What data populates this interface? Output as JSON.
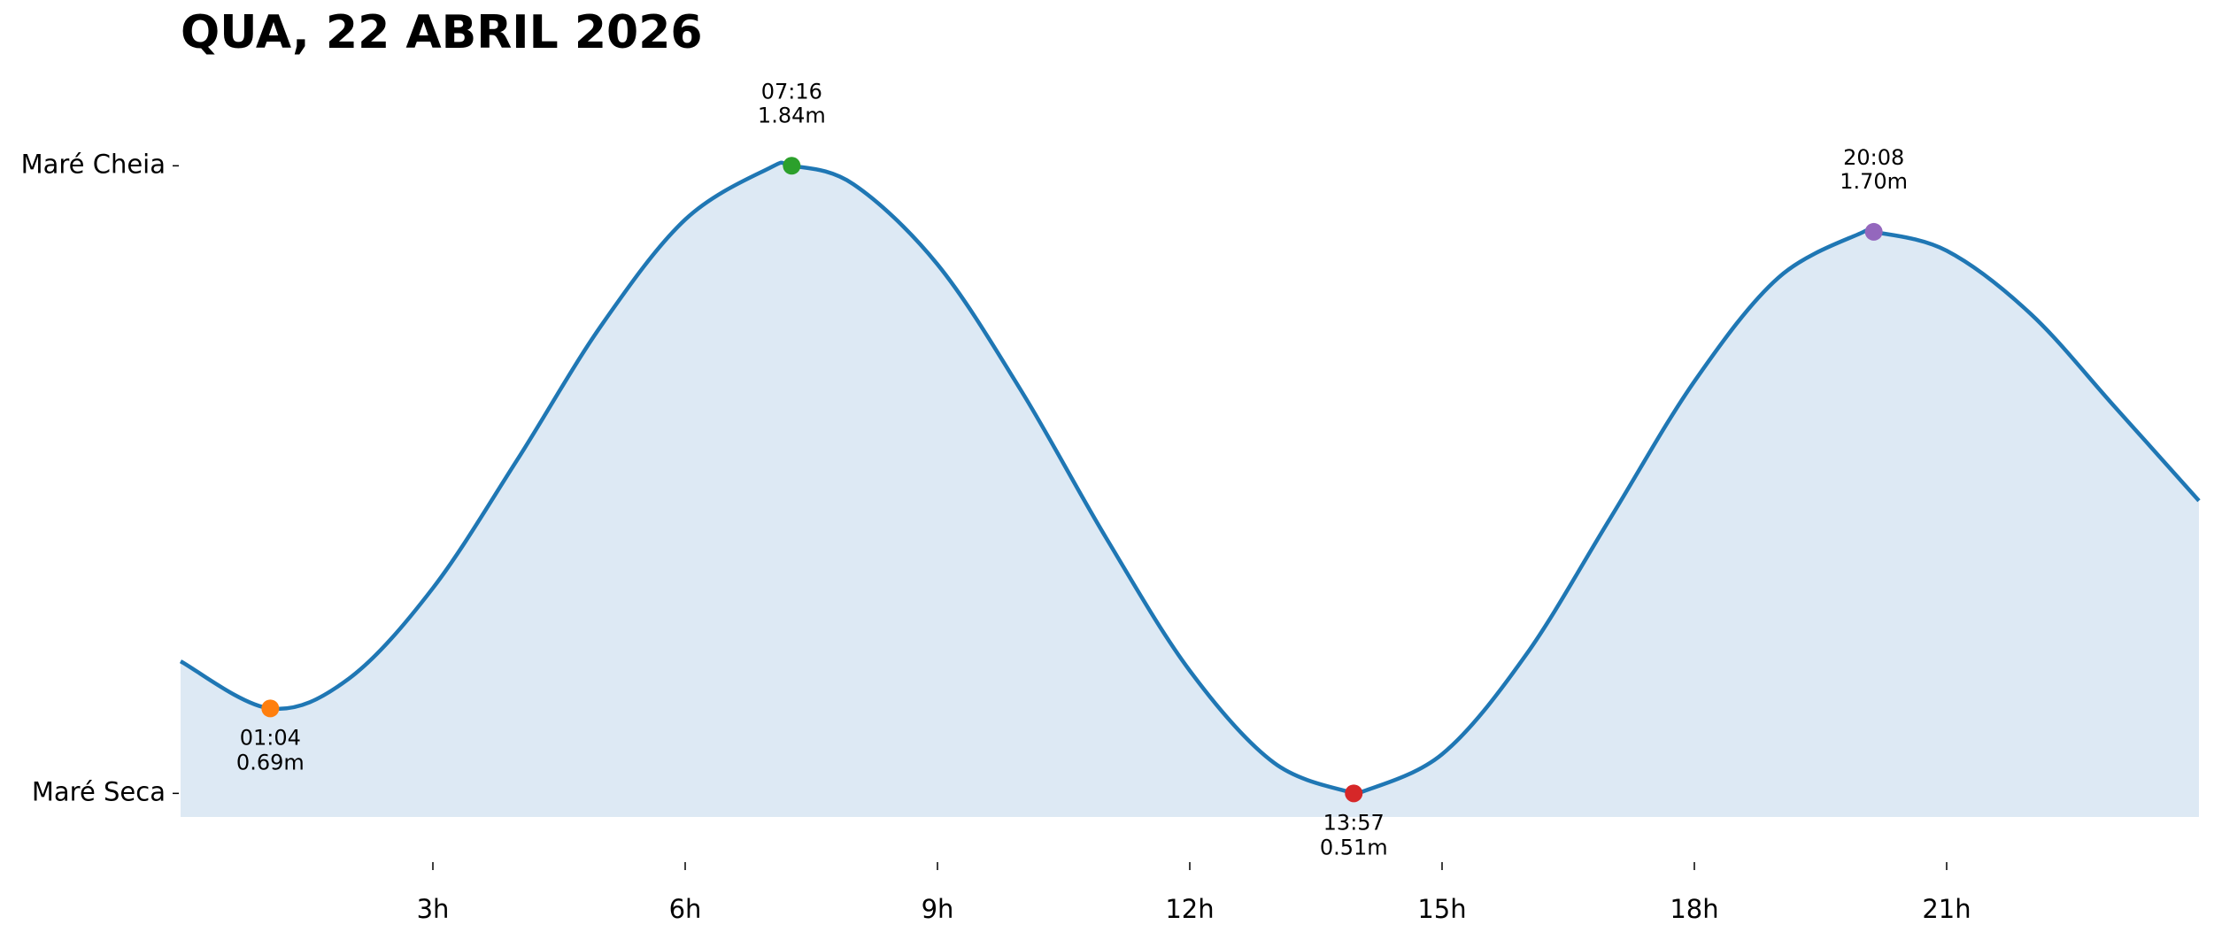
{
  "chart_data": {
    "type": "tide",
    "title": "QUA, 22 ABRIL 2026",
    "x": [
      0,
      1.0667,
      2,
      3,
      4,
      5,
      6,
      7,
      7.2667,
      8,
      9,
      10,
      11,
      12,
      13,
      13.95,
      14,
      15,
      16,
      17,
      18,
      19,
      20,
      20.1333,
      21,
      22,
      23,
      24
    ],
    "values": [
      0.79,
      0.69,
      0.753,
      0.945,
      1.216,
      1.501,
      1.726,
      1.835,
      1.84,
      1.801,
      1.631,
      1.362,
      1.053,
      0.77,
      0.575,
      0.51,
      0.51,
      0.593,
      0.804,
      1.093,
      1.383,
      1.603,
      1.699,
      1.7,
      1.66,
      1.526,
      1.329,
      1.13
    ],
    "color": "#1f77b4",
    "fill_color": "#dde9f4",
    "extremes": [
      {
        "time": "01:04",
        "x": 1.0667,
        "value": 0.69,
        "value_label": "0.69m",
        "color": "#ff7f0e",
        "position": "below"
      },
      {
        "time": "07:16",
        "x": 7.2667,
        "value": 1.84,
        "value_label": "1.84m",
        "color": "#2ca02c",
        "position": "above"
      },
      {
        "time": "13:57",
        "x": 13.95,
        "value": 0.51,
        "value_label": "0.51m",
        "color": "#d62728",
        "position": "below"
      },
      {
        "time": "20:08",
        "x": 20.1333,
        "value": 1.7,
        "value_label": "1.70m",
        "color": "#9467bd",
        "position": "above"
      }
    ],
    "xlim": [
      0,
      24
    ],
    "xticks": [
      {
        "value": 3,
        "label": "3h"
      },
      {
        "value": 6,
        "label": "6h"
      },
      {
        "value": 9,
        "label": "9h"
      },
      {
        "value": 12,
        "label": "12h"
      },
      {
        "value": 15,
        "label": "15h"
      },
      {
        "value": 18,
        "label": "18h"
      },
      {
        "value": 21,
        "label": "21h"
      }
    ],
    "ylim": [
      0.46,
      2.0
    ],
    "yticks": [
      {
        "value": 1.84,
        "label": "Maré Cheia"
      },
      {
        "value": 0.51,
        "label": "Maré Seca"
      }
    ]
  }
}
